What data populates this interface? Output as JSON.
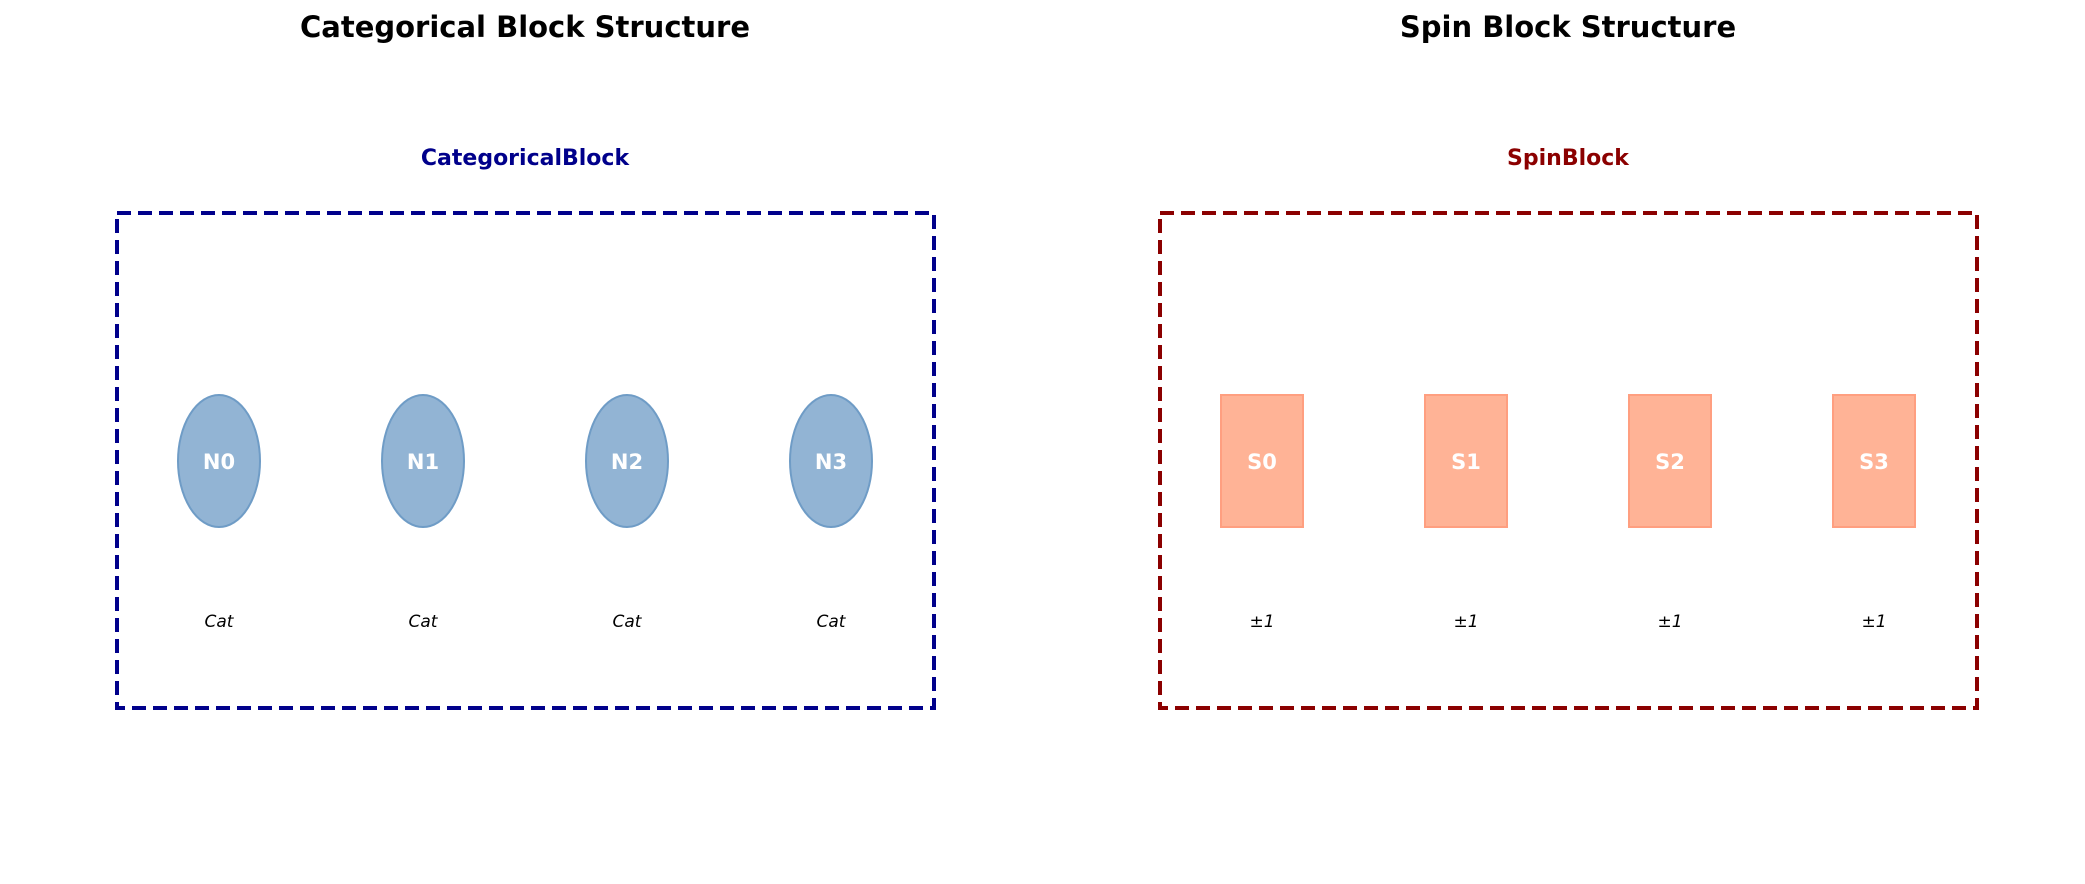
{
  "panels": [
    {
      "title": "Categorical Block Structure",
      "block_label": "CategoricalBlock",
      "block_color": "#00008b",
      "node_shape": "ellipse",
      "node_fill": "#92b4d4",
      "node_stroke": "#6f9cc6",
      "nodes": [
        {
          "label": "N0",
          "type": "Cat"
        },
        {
          "label": "N1",
          "type": "Cat"
        },
        {
          "label": "N2",
          "type": "Cat"
        },
        {
          "label": "N3",
          "type": "Cat"
        }
      ]
    },
    {
      "title": "Spin Block Structure",
      "block_label": "SpinBlock",
      "block_color": "#8b0000",
      "node_shape": "rectangle",
      "node_fill": "#ffb396",
      "node_stroke": "#ff9f80",
      "nodes": [
        {
          "label": "S0",
          "type": "±1"
        },
        {
          "label": "S1",
          "type": "±1"
        },
        {
          "label": "S2",
          "type": "±1"
        },
        {
          "label": "S3",
          "type": "±1"
        }
      ]
    }
  ]
}
